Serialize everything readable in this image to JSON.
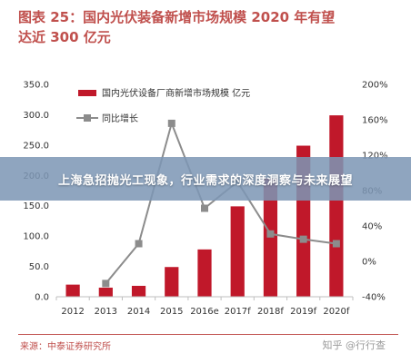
{
  "figure": {
    "title_line1": "图表 25：国内光伏装备新增市场规模 2020 年有望",
    "title_line2": "达近 300 亿元",
    "source": "来源：中泰证券研究所",
    "watermark": "知乎 @行行查"
  },
  "banner": {
    "text": "上海急招抛光工现象，行业需求的深度洞察与未来展望"
  },
  "colors": {
    "title": "#c0504d",
    "bar": "#c0182a",
    "line": "#8c8c8c",
    "axis_text": "#333333",
    "gridline": "#bfbfbf"
  },
  "chart_data": {
    "type": "bar+line",
    "categories": [
      "2012",
      "2013",
      "2014",
      "2015",
      "2016e",
      "2017f",
      "2018f",
      "2019f",
      "2020f"
    ],
    "series": [
      {
        "name": "国内光伏设备厂商新增市场规模 亿元",
        "type": "bar",
        "axis": "left",
        "values": [
          20,
          15,
          18,
          49,
          78,
          149,
          195,
          249,
          299
        ]
      },
      {
        "name": "同比增长",
        "type": "line",
        "axis": "right",
        "values": [
          null,
          -25,
          20,
          156,
          60,
          90,
          31,
          25,
          20
        ]
      }
    ],
    "left_axis": {
      "min": 0,
      "max": 350,
      "step": 50,
      "tick_labels": [
        "0.0",
        "50.0",
        "100.0",
        "150.0",
        "200.0",
        "250.0",
        "300.0",
        "350.0"
      ]
    },
    "right_axis": {
      "min": -40,
      "max": 200,
      "step": 40,
      "tick_labels": [
        "-40%",
        "0%",
        "40%",
        "80%",
        "120%",
        "160%",
        "200%"
      ]
    },
    "legend_position": "top-left",
    "grid": false
  }
}
